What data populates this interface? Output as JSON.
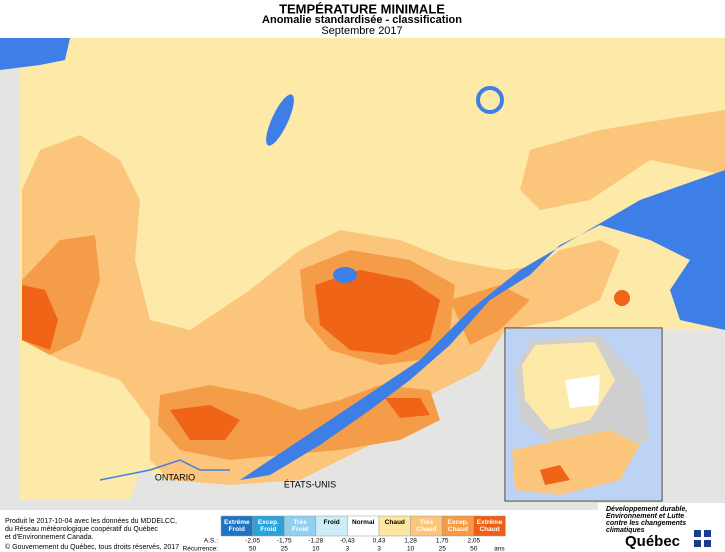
{
  "header": {
    "title": "TEMPÉRATURE MINIMALE",
    "subtitle": "Anomalie standardisée - classification",
    "date": "Septembre 2017"
  },
  "map": {
    "labels": [
      "ONTARIO",
      "ÉTATS-UNIS"
    ]
  },
  "legend": {
    "classes": [
      {
        "label": "Extrême Froid",
        "color": "#1f73c4"
      },
      {
        "label": "Excep. Froid",
        "color": "#2aa2dc"
      },
      {
        "label": "Très Froid",
        "color": "#8fd0ee"
      },
      {
        "label": "Froid",
        "color": "#cdedf8"
      },
      {
        "label": "Normal",
        "color": "#ffffff"
      },
      {
        "label": "Chaud",
        "color": "#fde6a0"
      },
      {
        "label": "Très Chaud",
        "color": "#fbc57a"
      },
      {
        "label": "Excep. Chaud",
        "color": "#f59b45"
      },
      {
        "label": "Extrême Chaud",
        "color": "#ee5f14"
      }
    ],
    "as_label": "A.S.:",
    "thresholds": [
      "-2,05",
      "-1,75",
      "-1,28",
      "-0,43",
      "0,43",
      "1,28",
      "1,75",
      "2,05"
    ],
    "recurrence_label": "Récurrence:",
    "recurrence": [
      "50",
      "25",
      "10",
      "3",
      "3",
      "10",
      "25",
      "50"
    ],
    "recurrence_unit": "ans"
  },
  "footer": {
    "source": [
      "Produit le 2017-10-04 avec les données du MDDELCC,",
      "du Réseau météorologique coopératif du Québec",
      "et d'Environnement Canada."
    ],
    "copyright": "© Gouvernement du Québec, tous droits réservés, 2017",
    "ministry": [
      "Développement durable,",
      "Environnement et Lutte",
      "contre les changements",
      "climatiques"
    ],
    "brand": "Québec"
  }
}
